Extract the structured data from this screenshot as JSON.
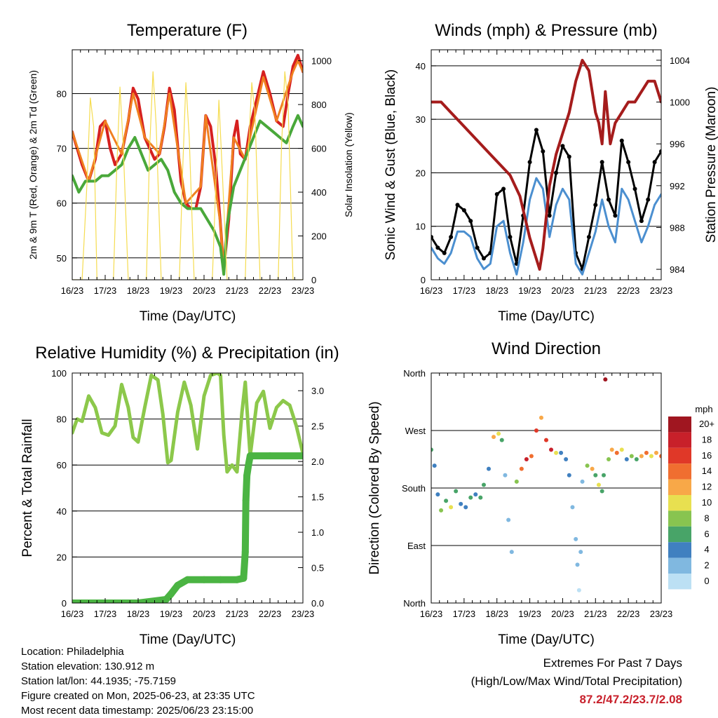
{
  "chart_data": [
    {
      "type": "line",
      "title": "Temperature (F)",
      "xlabel": "Time (Day/UTC)",
      "ylabel": "2m & 9m T (Red, Orange) & 2m Td (Green)",
      "y2label": "Solar Insolation (Yellow)",
      "x_ticks": [
        "16/23",
        "17/23",
        "18/23",
        "19/23",
        "20/23",
        "21/23",
        "22/23",
        "23/23"
      ],
      "x_range": [
        0,
        7
      ],
      "ylim": [
        46,
        88
      ],
      "y_ticks": [
        50,
        60,
        70,
        80
      ],
      "y2lim": [
        0,
        1050
      ],
      "y2_ticks": [
        0,
        200,
        400,
        600,
        800,
        1000
      ],
      "grid": "horizontal",
      "series": [
        {
          "color": "#d62020",
          "axis": "left",
          "x": [
            0.0,
            0.15,
            0.3,
            0.5,
            0.7,
            0.85,
            1.0,
            1.15,
            1.3,
            1.5,
            1.7,
            1.85,
            2.0,
            2.2,
            2.35,
            2.5,
            2.65,
            2.8,
            2.95,
            3.1,
            3.3,
            3.45,
            3.6,
            3.75,
            3.9,
            4.05,
            4.2,
            4.35,
            4.5,
            4.6,
            4.75,
            4.9,
            5.0,
            5.1,
            5.25,
            5.4,
            5.6,
            5.8,
            6.0,
            6.2,
            6.4,
            6.55,
            6.7,
            6.85,
            7.0
          ],
          "y": [
            73,
            70,
            67,
            64,
            68,
            74,
            75,
            70,
            67,
            69,
            75,
            81,
            79,
            72,
            70,
            68,
            69,
            74,
            81,
            77,
            64,
            60,
            59,
            59,
            63,
            76,
            74,
            67,
            56,
            48,
            57,
            72,
            75,
            69,
            68,
            74,
            79,
            84,
            80,
            75,
            74,
            80,
            85,
            87,
            84
          ]
        },
        {
          "color": "#f08020",
          "axis": "left",
          "x": [
            0.0,
            0.5,
            1.0,
            1.5,
            1.85,
            2.2,
            2.65,
            2.95,
            3.45,
            3.9,
            4.05,
            4.5,
            4.6,
            4.9,
            5.25,
            5.8,
            6.2,
            6.7,
            6.85,
            7.0
          ],
          "y": [
            73,
            64,
            75,
            69,
            80,
            72,
            69,
            80,
            60,
            63,
            76,
            56,
            48,
            72,
            68,
            83,
            75,
            84,
            86,
            84
          ]
        },
        {
          "color": "#49a83a",
          "axis": "left",
          "x": [
            0.0,
            0.2,
            0.4,
            0.7,
            0.9,
            1.1,
            1.3,
            1.5,
            1.7,
            1.9,
            2.1,
            2.3,
            2.5,
            2.7,
            2.9,
            3.1,
            3.3,
            3.5,
            3.7,
            3.9,
            4.1,
            4.3,
            4.5,
            4.6,
            4.7,
            4.9,
            5.1,
            5.3,
            5.5,
            5.7,
            5.9,
            6.1,
            6.3,
            6.5,
            6.7,
            6.85,
            7.0
          ],
          "y": [
            65,
            62,
            64,
            64,
            65,
            65,
            66,
            67,
            70,
            72,
            69,
            66,
            67,
            68,
            66,
            62,
            60,
            59,
            59,
            59,
            57,
            55,
            52,
            47,
            56,
            63,
            66,
            69,
            72,
            75,
            74,
            73,
            72,
            71,
            74,
            76,
            74
          ]
        },
        {
          "color": "#f5dc50",
          "axis": "right",
          "x": [
            0.0,
            0.3,
            0.45,
            0.55,
            0.65,
            0.75,
            1.0,
            1.25,
            1.35,
            1.45,
            1.55,
            1.7,
            2.0,
            2.25,
            2.35,
            2.45,
            2.55,
            2.7,
            3.0,
            3.25,
            3.35,
            3.45,
            3.55,
            3.7,
            4.0,
            4.25,
            4.35,
            4.45,
            4.55,
            4.7,
            5.0,
            5.25,
            5.35,
            5.45,
            5.55,
            5.7,
            6.0,
            6.25,
            6.35,
            6.45,
            6.55,
            6.7,
            7.0
          ],
          "y": [
            0,
            0,
            450,
            830,
            700,
            0,
            0,
            0,
            500,
            880,
            600,
            0,
            0,
            0,
            600,
            950,
            700,
            0,
            0,
            0,
            500,
            900,
            650,
            0,
            0,
            0,
            400,
            820,
            500,
            0,
            0,
            0,
            600,
            900,
            750,
            0,
            0,
            0,
            600,
            950,
            800,
            0,
            0
          ]
        }
      ]
    },
    {
      "type": "line",
      "title": "Winds (mph) & Pressure (mb)",
      "xlabel": "Time (Day/UTC)",
      "ylabel": "Sonic Wind & Gust (Blue, Black)",
      "y2label": "Station Pressure (Maroon)",
      "x_ticks": [
        "16/23",
        "17/23",
        "18/23",
        "19/23",
        "20/23",
        "21/23",
        "22/23",
        "23/23"
      ],
      "x_range": [
        0,
        7
      ],
      "ylim": [
        0,
        43
      ],
      "y_ticks": [
        0,
        10,
        20,
        30,
        40
      ],
      "y2lim": [
        983,
        1005
      ],
      "y2_ticks": [
        984,
        988,
        992,
        996,
        1000,
        1004
      ],
      "grid": "horizontal",
      "series": [
        {
          "color": "#000000",
          "axis": "left",
          "x": [
            0.0,
            0.2,
            0.4,
            0.6,
            0.8,
            1.0,
            1.2,
            1.4,
            1.6,
            1.8,
            2.0,
            2.2,
            2.4,
            2.6,
            2.8,
            3.0,
            3.2,
            3.4,
            3.6,
            3.8,
            4.0,
            4.2,
            4.4,
            4.6,
            4.8,
            5.0,
            5.2,
            5.4,
            5.6,
            5.8,
            6.0,
            6.2,
            6.4,
            6.6,
            6.8,
            7.0
          ],
          "y": [
            8,
            6,
            5,
            8,
            14,
            13,
            11,
            6,
            4,
            5,
            16,
            17,
            8,
            3,
            12,
            22,
            28,
            24,
            12,
            20,
            25,
            23,
            5,
            2,
            8,
            14,
            22,
            15,
            12,
            26,
            22,
            17,
            11,
            15,
            22,
            24
          ]
        },
        {
          "color": "#4b8fd0",
          "axis": "left",
          "x": [
            0.0,
            0.2,
            0.4,
            0.6,
            0.8,
            1.0,
            1.2,
            1.4,
            1.6,
            1.8,
            2.0,
            2.2,
            2.4,
            2.6,
            2.8,
            3.0,
            3.2,
            3.4,
            3.6,
            3.8,
            4.0,
            4.2,
            4.4,
            4.6,
            4.8,
            5.0,
            5.2,
            5.4,
            5.6,
            5.8,
            6.0,
            6.2,
            6.4,
            6.6,
            6.8,
            7.0
          ],
          "y": [
            6,
            4,
            3,
            5,
            9,
            9,
            8,
            4,
            2,
            3,
            10,
            11,
            5,
            1,
            7,
            15,
            19,
            17,
            8,
            14,
            17,
            15,
            3,
            1,
            5,
            9,
            15,
            10,
            7,
            17,
            15,
            11,
            7,
            10,
            14,
            16
          ]
        },
        {
          "color": "#a51c1c",
          "axis": "right",
          "x": [
            0.0,
            0.3,
            0.6,
            0.9,
            1.2,
            1.5,
            1.8,
            2.1,
            2.4,
            2.7,
            3.0,
            3.2,
            3.3,
            3.4,
            3.6,
            3.8,
            4.0,
            4.2,
            4.4,
            4.6,
            4.8,
            5.0,
            5.1,
            5.2,
            5.3,
            5.45,
            5.6,
            5.8,
            6.0,
            6.2,
            6.4,
            6.6,
            6.8,
            6.9,
            7.0
          ],
          "y": [
            1000,
            1000,
            999,
            998,
            997,
            996,
            995,
            994,
            993,
            991,
            987,
            985,
            984,
            986,
            992,
            995,
            997,
            999,
            1002,
            1004,
            1003,
            999,
            998,
            996,
            1001,
            996,
            998,
            999,
            1000,
            1000,
            1001,
            1002,
            1002,
            1001,
            1000
          ]
        }
      ]
    },
    {
      "type": "line",
      "title": "Relative Humidity (%) & Precipitation (in)",
      "xlabel": "Time (Day/UTC)",
      "ylabel": "Percent & Total Rainfall",
      "x_ticks": [
        "16/23",
        "17/23",
        "18/23",
        "19/23",
        "20/23",
        "21/23",
        "22/23",
        "23/23"
      ],
      "x_range": [
        0,
        7
      ],
      "ylim": [
        0,
        100
      ],
      "y_ticks": [
        0,
        20,
        40,
        60,
        80,
        100
      ],
      "y2lim": [
        0,
        3.25
      ],
      "y2_ticks": [
        "0.0",
        "0.5",
        "1.0",
        "1.5",
        "2.0",
        "2.5",
        "3.0"
      ],
      "grid": "horizontal",
      "series": [
        {
          "color": "#8cc84b",
          "axis": "left",
          "x": [
            0.0,
            0.15,
            0.3,
            0.5,
            0.7,
            0.9,
            1.1,
            1.3,
            1.5,
            1.7,
            1.85,
            2.0,
            2.2,
            2.4,
            2.6,
            2.75,
            2.9,
            3.0,
            3.2,
            3.4,
            3.6,
            3.8,
            4.0,
            4.2,
            4.4,
            4.5,
            4.6,
            4.7,
            4.85,
            5.0,
            5.15,
            5.25,
            5.3,
            5.4,
            5.6,
            5.8,
            6.0,
            6.2,
            6.4,
            6.6,
            6.8,
            7.0
          ],
          "y": [
            74,
            80,
            79,
            90,
            85,
            74,
            73,
            77,
            95,
            85,
            72,
            70,
            85,
            99,
            97,
            82,
            61,
            62,
            83,
            96,
            86,
            67,
            90,
            99,
            100,
            99,
            73,
            57,
            60,
            57,
            83,
            96,
            85,
            64,
            87,
            92,
            76,
            85,
            88,
            86,
            77,
            65
          ]
        },
        {
          "color": "#4bb443",
          "axis": "right",
          "x": [
            0.0,
            1.0,
            2.0,
            2.85,
            3.0,
            3.2,
            3.5,
            4.0,
            4.5,
            5.0,
            5.2,
            5.25,
            5.27,
            5.3,
            5.35,
            5.4,
            6.0,
            7.0
          ],
          "y": [
            0.0,
            0.0,
            0.0,
            0.05,
            0.13,
            0.25,
            0.33,
            0.33,
            0.33,
            0.33,
            0.35,
            0.72,
            1.45,
            1.8,
            1.95,
            2.08,
            2.08,
            2.08
          ]
        }
      ]
    },
    {
      "type": "scatter",
      "title": "Wind Direction",
      "xlabel": "Time (Day/UTC)",
      "ylabel": "Direction (Colored By Speed)",
      "x_ticks": [
        "16/23",
        "17/23",
        "18/23",
        "19/23",
        "20/23",
        "21/23",
        "22/23",
        "23/23"
      ],
      "x_range": [
        0,
        7
      ],
      "y_ticks": [
        "North",
        "East",
        "South",
        "West",
        "North"
      ],
      "ylim": [
        0,
        360
      ],
      "grid": "horizontal",
      "legend": {
        "title": "mph",
        "placement": "right",
        "labels": [
          "20+",
          "18",
          "16",
          "14",
          "12",
          "10",
          "8",
          "6",
          "4",
          "2",
          "0"
        ],
        "colors": [
          "#a01620",
          "#c8202a",
          "#e03828",
          "#f06e30",
          "#f8a848",
          "#e8e050",
          "#88c450",
          "#48a468",
          "#4080c0",
          "#80b8e0",
          "#bce0f4"
        ]
      },
      "x": [
        0.0,
        0.1,
        0.2,
        0.3,
        0.45,
        0.6,
        0.75,
        0.9,
        1.05,
        1.2,
        1.35,
        1.5,
        1.6,
        1.75,
        1.9,
        2.05,
        2.15,
        2.25,
        2.35,
        2.45,
        2.6,
        2.75,
        2.9,
        3.05,
        3.2,
        3.35,
        3.5,
        3.65,
        3.8,
        3.95,
        4.1,
        4.2,
        4.3,
        4.4,
        4.45,
        4.5,
        4.55,
        4.6,
        4.75,
        4.9,
        5.0,
        5.1,
        5.2,
        5.25,
        5.3,
        5.4,
        5.5,
        5.65,
        5.8,
        5.95,
        6.1,
        6.25,
        6.4,
        6.55,
        6.7,
        6.85,
        7.0
      ],
      "y": [
        240,
        215,
        170,
        145,
        160,
        150,
        175,
        155,
        150,
        165,
        170,
        165,
        185,
        210,
        260,
        265,
        255,
        200,
        130,
        80,
        190,
        210,
        225,
        230,
        270,
        290,
        255,
        240,
        235,
        235,
        225,
        200,
        150,
        100,
        60,
        20,
        80,
        190,
        215,
        210,
        200,
        185,
        175,
        200,
        350,
        225,
        240,
        235,
        240,
        225,
        230,
        225,
        230,
        235,
        230,
        235,
        230
      ],
      "speed": [
        6,
        3,
        4,
        8,
        6,
        10,
        5,
        3,
        3,
        5,
        4,
        6,
        5,
        4,
        12,
        10,
        6,
        2,
        2,
        1,
        8,
        14,
        18,
        14,
        16,
        12,
        16,
        18,
        10,
        4,
        4,
        3,
        2,
        1,
        1,
        0,
        2,
        2,
        8,
        12,
        6,
        10,
        6,
        6,
        20,
        8,
        12,
        14,
        10,
        4,
        8,
        6,
        12,
        14,
        10,
        12,
        14
      ]
    }
  ],
  "info": {
    "location": "Location: Philadelphia",
    "elevation": "Station elevation: 130.912 m",
    "latlon": "Station lat/lon: 44.1935; -75.7159",
    "created": "Figure created on Mon, 2025-06-23, at 23:35 UTC",
    "recent": "Most recent data timestamp: 2025/06/23 23:15:00"
  },
  "extremes": {
    "heading": "Extremes For Past 7 Days",
    "subheading": "(High/Low/Max Wind/Total Precipitation)",
    "values": "87.2/47.2/23.7/2.08"
  }
}
